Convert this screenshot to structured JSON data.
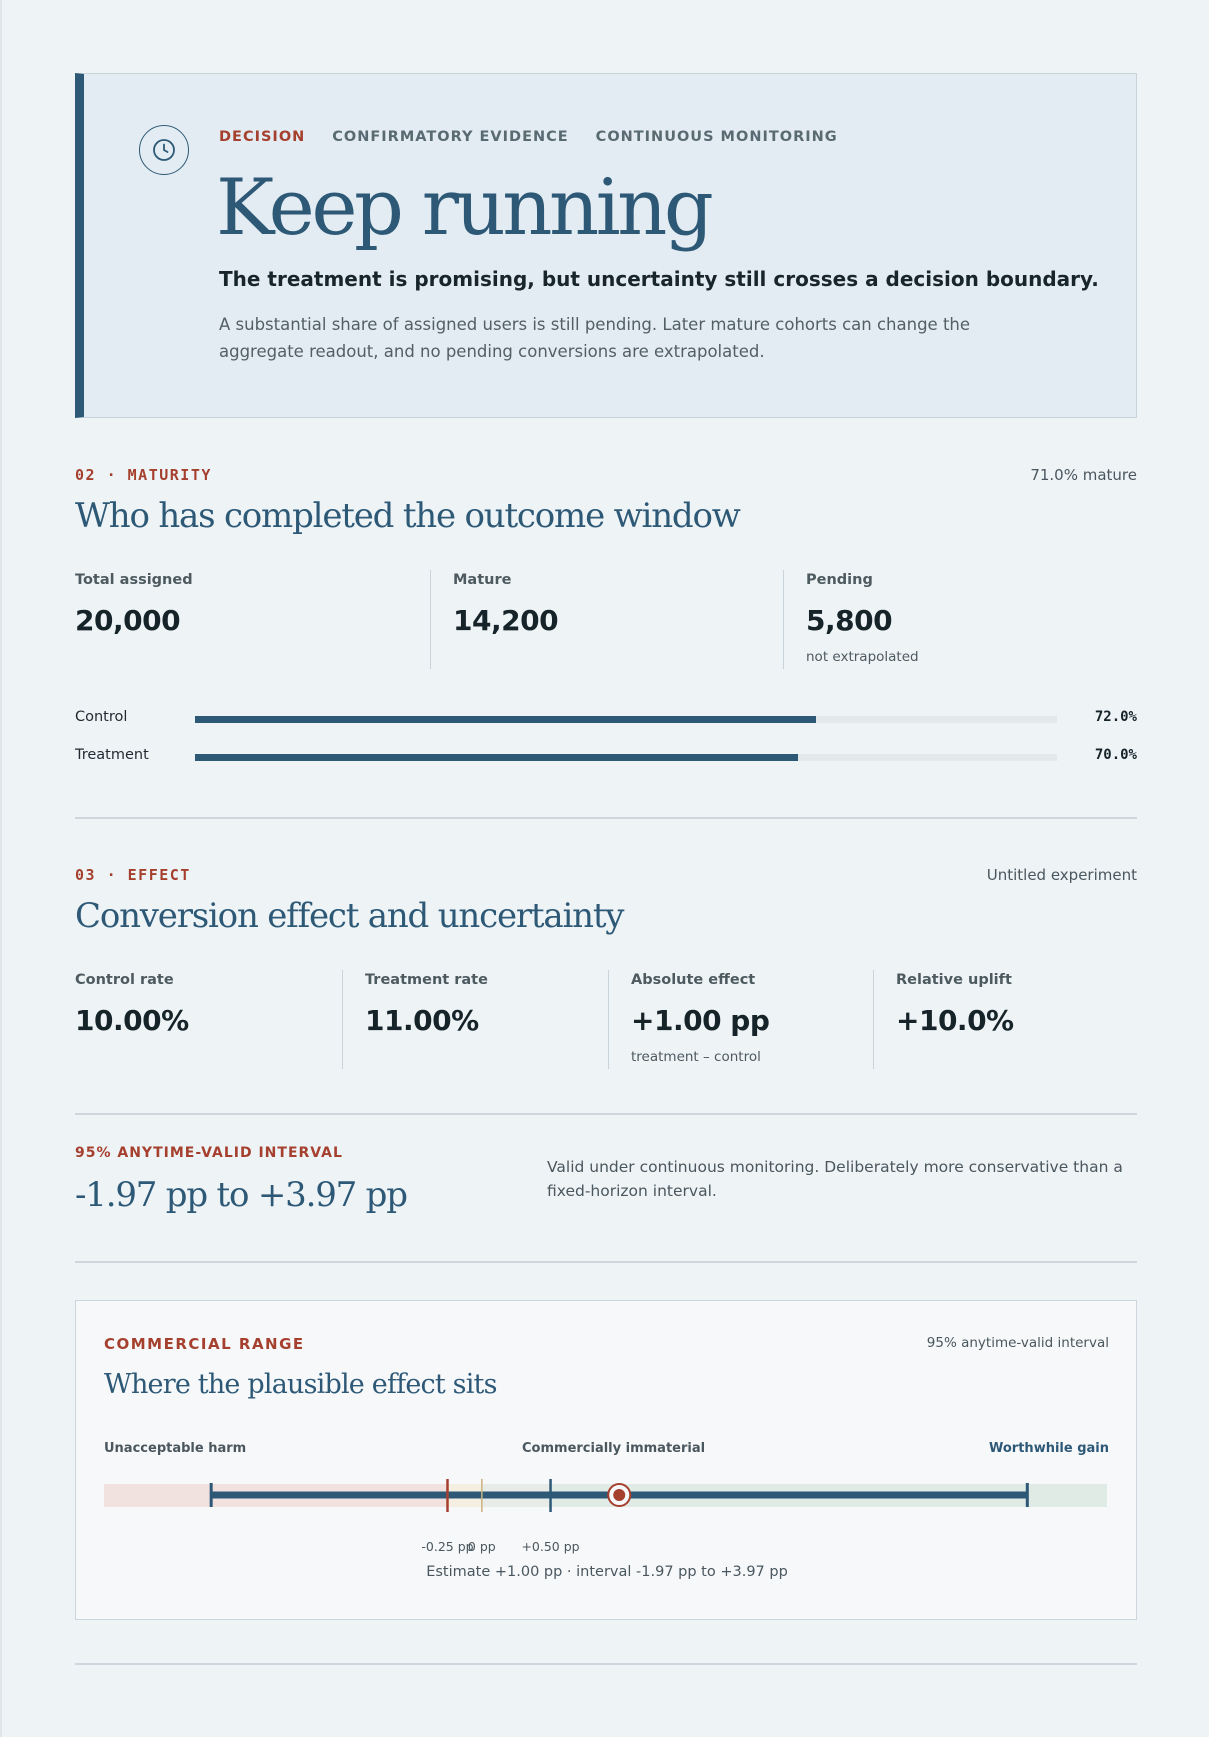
{
  "decision": {
    "tabs": [
      "DECISION",
      "CONFIRMATORY EVIDENCE",
      "CONTINUOUS MONITORING"
    ],
    "active_tab": "DECISION",
    "headline": "Keep running",
    "subhead": "The treatment is promising, but uncertainty still crosses a decision boundary.",
    "description": "A substantial share of assigned users is still pending. Later mature cohorts can change the aggregate readout, and no pending conversions are extrapolated.",
    "icon": "clock-icon"
  },
  "maturity": {
    "eyebrow": "02 · MATURITY",
    "right_note": "71.0% mature",
    "title": "Who has completed the outcome window",
    "stats": [
      {
        "label": "Total assigned",
        "value": "20,000",
        "note": ""
      },
      {
        "label": "Mature",
        "value": "14,200",
        "note": ""
      },
      {
        "label": "Pending",
        "value": "5,800",
        "note": "not extrapolated"
      }
    ],
    "bars": [
      {
        "label": "Control",
        "value_text": "72.0%",
        "fraction": 0.72
      },
      {
        "label": "Treatment",
        "value_text": "70.0%",
        "fraction": 0.7
      }
    ]
  },
  "effect": {
    "eyebrow": "03 · EFFECT",
    "right_note": "Untitled experiment",
    "title": "Conversion effect and uncertainty",
    "stats": [
      {
        "label": "Control rate",
        "value": "10.00%",
        "note": ""
      },
      {
        "label": "Treatment rate",
        "value": "11.00%",
        "note": ""
      },
      {
        "label": "Absolute effect",
        "value": "+1.00 pp",
        "note": "treatment – control"
      },
      {
        "label": "Relative uplift",
        "value": "+10.0%",
        "note": ""
      }
    ]
  },
  "interval": {
    "label": "95% ANYTIME-VALID INTERVAL",
    "value": "-1.97 pp to +3.97 pp",
    "note": "Valid under continuous monitoring. Deliberately more conservative than a fixed-horizon interval."
  },
  "commercial": {
    "eyebrow": "COMMERCIAL RANGE",
    "right_note": "95% anytime-valid interval",
    "title": "Where the plausible effect sits",
    "zones": {
      "harm": "Unacceptable harm",
      "immaterial": "Commercially immaterial",
      "gain": "Worthwhile gain"
    },
    "ticks": [
      {
        "text": "-0.25 pp",
        "value": -0.25
      },
      {
        "text": "0 pp",
        "value": 0
      },
      {
        "text": "+0.50 pp",
        "value": 0.5
      }
    ],
    "estimate": 1.0,
    "interval_low": -1.97,
    "interval_high": 3.97,
    "summary": "Estimate +1.00 pp · interval -1.97 pp to +3.97 pp",
    "colors": {
      "harm": "#f2e2df",
      "neutral": "#f5efe1",
      "gain": "#e1ebe5",
      "accent": "#2d5977",
      "alert": "#a6402e"
    }
  }
}
